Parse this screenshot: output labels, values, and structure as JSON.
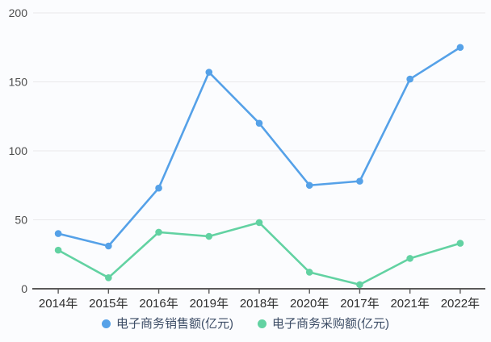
{
  "page": {
    "background": "#fbfcfe"
  },
  "chart_data": {
    "type": "line",
    "title": "",
    "xlabel": "",
    "ylabel": "",
    "categories": [
      "2014年",
      "2015年",
      "2016年",
      "2019年",
      "2018年",
      "2020年",
      "2017年",
      "2021年",
      "2022年"
    ],
    "series": [
      {
        "name": "电子商务销售额(亿元)",
        "color": "#55a1e8",
        "values": [
          40,
          31,
          73,
          157,
          120,
          75,
          78,
          152,
          175
        ]
      },
      {
        "name": "电子商务采购额(亿元)",
        "color": "#62d2a2",
        "values": [
          28,
          8,
          41,
          38,
          48,
          12,
          3,
          22,
          33
        ]
      }
    ],
    "y_axis": {
      "min": 0,
      "max": 200,
      "ticks": [
        0,
        50,
        100,
        150,
        200
      ]
    },
    "grid": true,
    "legend_position": "bottom"
  },
  "style": {
    "grid_line_color": "#e9e9eb",
    "axis_line_color": "#5a5a5a",
    "tick_color": "#5a5a5a",
    "y_label_color": "#4d4d4d",
    "x_label_color": "#2e2e2e",
    "legend_text_color": "#3d4d66"
  }
}
